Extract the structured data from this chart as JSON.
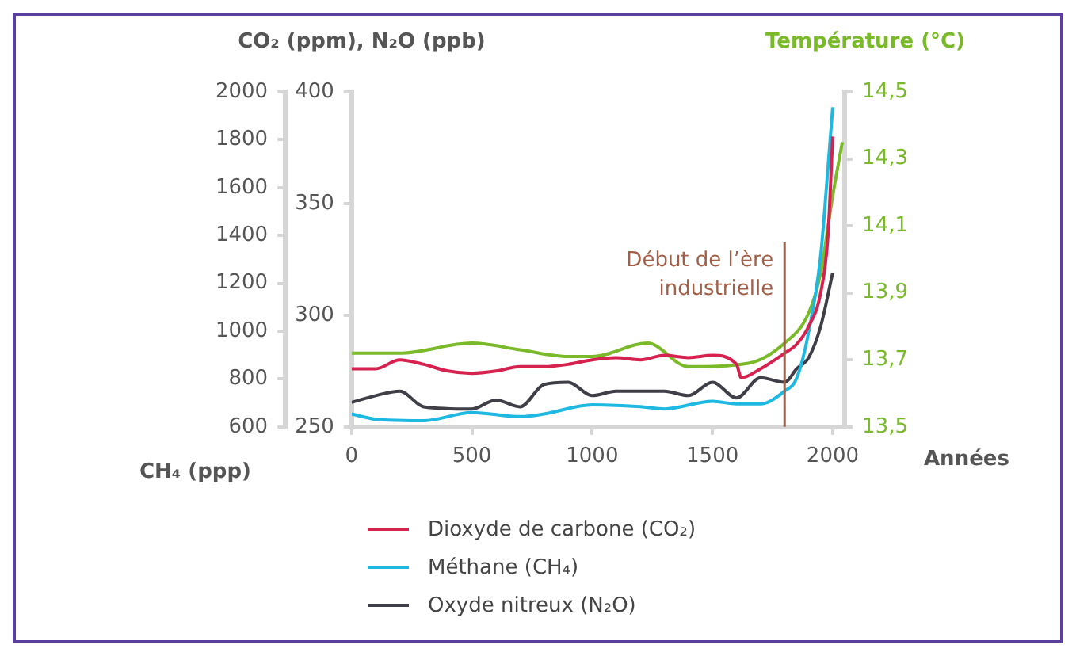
{
  "chart_data": {
    "type": "line",
    "ylabel": "CO₂ (ppm), N₂O (ppb)",
    "y2label": "Température (°C)",
    "y3label": "CH₄ (ppp)",
    "xlabel": "Années",
    "xlim": [
      0,
      2050
    ],
    "xticks": [
      0,
      500,
      1000,
      1500,
      2000
    ],
    "ylim": [
      250,
      400
    ],
    "yticks": [
      250,
      300,
      350,
      400
    ],
    "y2lim": [
      13.5,
      14.5
    ],
    "y2ticks": [
      {
        "value": 13.5,
        "label": "13,5"
      },
      {
        "value": 13.7,
        "label": "13,7"
      },
      {
        "value": 13.9,
        "label": "13,9"
      },
      {
        "value": 14.1,
        "label": "14,1"
      },
      {
        "value": 14.3,
        "label": "14,3"
      },
      {
        "value": 14.5,
        "label": "14,5"
      }
    ],
    "y3lim": [
      600,
      2000
    ],
    "y3ticks": [
      600,
      800,
      1000,
      1200,
      1400,
      1600,
      1800,
      2000
    ],
    "grid": false,
    "legend": "bottom",
    "marker": "none",
    "line_style": "solid",
    "ref_lines": [
      {
        "axis": "x",
        "value": 1800,
        "label": "Début de l’ère industrielle",
        "color": "#a0604a"
      }
    ],
    "series": [
      {
        "name": "Dioxyde de carbone (CO₂)",
        "color": "#d6224f",
        "x": [
          0,
          100,
          200,
          300,
          400,
          500,
          600,
          700,
          800,
          900,
          1000,
          1100,
          1200,
          1300,
          1400,
          1500,
          1600,
          1620,
          1700,
          1800,
          1850,
          1900,
          1950,
          1980,
          2000
        ],
        "values": [
          276,
          276,
          280,
          278,
          275,
          274,
          275,
          277,
          277,
          278,
          280,
          281,
          280,
          282,
          281,
          282,
          278,
          272,
          276,
          283,
          287,
          295,
          310,
          335,
          380
        ]
      },
      {
        "name": "Méthane (CH₄)",
        "color": "#1fb8e0",
        "axis": "y3",
        "x": [
          0,
          100,
          300,
          500,
          700,
          800,
          1000,
          1200,
          1300,
          1500,
          1600,
          1700,
          1800,
          1850,
          1900,
          1950,
          1980,
          2000
        ],
        "values": [
          654,
          632,
          626,
          660,
          643,
          654,
          692,
          685,
          675,
          707,
          696,
          696,
          750,
          803,
          996,
          1316,
          1679,
          1936
        ]
      },
      {
        "name": "Oxyde nitreux (N₂O)",
        "color": "#3f3f48",
        "x": [
          0,
          100,
          200,
          300,
          500,
          600,
          700,
          800,
          900,
          1000,
          1100,
          1300,
          1400,
          1500,
          1600,
          1700,
          1800,
          1850,
          1900,
          1950,
          2000
        ],
        "values": [
          261,
          264,
          266,
          259,
          258,
          262,
          259,
          269,
          270,
          264,
          266,
          266,
          264,
          270,
          263,
          272,
          270,
          276,
          281,
          295,
          319
        ]
      },
      {
        "color": "#7ab929",
        "axis": "y2",
        "x": [
          0,
          200,
          500,
          700,
          900,
          1000,
          1230,
          1400,
          1650,
          1800,
          1900,
          1950,
          2000,
          2040
        ],
        "values": [
          13.72,
          13.72,
          13.75,
          13.73,
          13.71,
          13.71,
          13.75,
          13.68,
          13.69,
          13.75,
          13.84,
          13.96,
          14.19,
          14.35
        ]
      }
    ]
  }
}
